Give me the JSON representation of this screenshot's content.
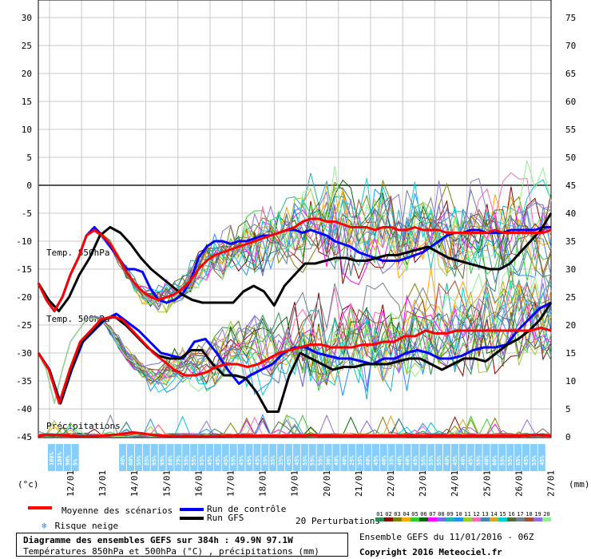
{
  "axes": {
    "left_unit": "(°c)",
    "right_unit": "(mm)",
    "left_ticks": [
      30,
      25,
      20,
      15,
      10,
      5,
      0,
      -5,
      -10,
      -15,
      -20,
      -25,
      -30,
      -35,
      -40,
      -45
    ],
    "right_ticks": [
      75,
      70,
      65,
      60,
      55,
      50,
      45,
      40,
      35,
      30,
      25,
      20,
      15,
      10,
      5,
      0
    ],
    "date_labels": [
      "12/01",
      "13/01",
      "14/01",
      "15/01",
      "16/01",
      "17/01",
      "18/01",
      "19/01",
      "20/01",
      "21/01",
      "22/01",
      "23/01",
      "24/01",
      "25/01",
      "26/01",
      "27/01"
    ]
  },
  "panel_labels": {
    "t850": "Temp. 850hPa",
    "t500": "Temp. 500hPa",
    "precip": "Précipitations"
  },
  "snow_risk_row": [
    "100%",
    "100%",
    "90%",
    "5%",
    "",
    "",
    "",
    "",
    "",
    "40%",
    "60%",
    "55%",
    "85%",
    "95%",
    "95%",
    "80%",
    "75%",
    "55%",
    "55%",
    "55%",
    "45%",
    "45%",
    "45%",
    "55%",
    "45%",
    "45%",
    "45%",
    "35%",
    "35%",
    "35%",
    "45%",
    "45%",
    "55%",
    "55%",
    "55%",
    "30%",
    "40%",
    "40%",
    "25%",
    "35%",
    "40%",
    "45%",
    "40%",
    "35%",
    "40%",
    "40%",
    "45%",
    "55%",
    "55%",
    "55%",
    "40%",
    "45%",
    "40%",
    "45%",
    "55%",
    "40%",
    "60%",
    "55%",
    "55%",
    "65%",
    "45%",
    "55%",
    "45%"
  ],
  "legend": {
    "mean_label": "Moyenne des scénarios",
    "control_label": "Run de contrôle",
    "gfs_label": "Run GFS",
    "snow_label": "Risque neige",
    "perturbations_label": "20 Perturbations",
    "ensemble_label": "Ensemble GEFS du 11/01/2016 - 06Z",
    "copyright": "Copyright 2016 Meteociel.fr",
    "mean_color": "#ff0000",
    "control_color": "#0000ff",
    "gfs_color": "#000000"
  },
  "perturbations": {
    "numbers": [
      "01",
      "02",
      "03",
      "04",
      "05",
      "06",
      "07",
      "08",
      "09",
      "10",
      "11",
      "12",
      "13",
      "14",
      "15",
      "16",
      "17",
      "18",
      "19",
      "20"
    ],
    "colors": [
      "#2e8b57",
      "#8b0000",
      "#808000",
      "#ffa500",
      "#32cd32",
      "#006400",
      "#ff00ff",
      "#7b68ee",
      "#20b2aa",
      "#1e90ff",
      "#9acd32",
      "#ff69b4",
      "#4682b4",
      "#daa520",
      "#00ced1",
      "#556b2f",
      "#708090",
      "#a0522d",
      "#9370db",
      "#90ee90"
    ]
  },
  "info": {
    "title": "Diagramme des ensembles GEFS sur 384h : 49.9N 97.1W",
    "subtitle": "Températures 850hPa et 500hPa (°C) , précipitations (mm)"
  },
  "chart_data": {
    "type": "line",
    "x_start": "11/01/2016 06Z",
    "x_unit_hours": 6,
    "ylim": [
      -45,
      30
    ],
    "y2lim": [
      0,
      75
    ],
    "series": [
      {
        "name": "Moyenne des scénarios",
        "level": "850hPa",
        "values": [
          -17.5,
          -20.5,
          -22.5,
          -20,
          -16,
          -13,
          -9,
          -8,
          -9,
          -10.5,
          -13,
          -15.5,
          -17.5,
          -19,
          -20,
          -20.5,
          -20,
          -19.5,
          -18.5,
          -17,
          -15,
          -13.5,
          -12.5,
          -12,
          -11.5,
          -11,
          -10.5,
          -10,
          -9.5,
          -9,
          -8.5,
          -8,
          -7.5,
          -6.5,
          -6,
          -6,
          -6.5,
          -6.5,
          -7,
          -7.5,
          -7.5,
          -7.5,
          -8,
          -7.5,
          -7.5,
          -8,
          -8,
          -7.5,
          -8,
          -8,
          -8,
          -8.5,
          -8.5,
          -8.5,
          -8.5,
          -8.5,
          -8.5,
          -8,
          -8.5,
          -8.5,
          -8.5,
          -8.5,
          -8.5,
          -8.5,
          -8
        ]
      },
      {
        "name": "Run de contrôle",
        "level": "850hPa",
        "values": [
          -17.5,
          -20.5,
          -22.5,
          -20,
          -16,
          -13,
          -9,
          -7.5,
          -9,
          -11,
          -13,
          -15,
          -15,
          -15.5,
          -18.5,
          -20.5,
          -21,
          -20.5,
          -19.5,
          -17,
          -13,
          -11,
          -10,
          -10,
          -10.5,
          -10,
          -10,
          -9.5,
          -9,
          -9,
          -8.5,
          -8,
          -8,
          -8.5,
          -8,
          -8.5,
          -9,
          -10,
          -10.5,
          -11,
          -12,
          -12.5,
          -13,
          -13.5,
          -13.5,
          -13.5,
          -13,
          -12.5,
          -12,
          -11,
          -10,
          -9,
          -8.5,
          -8.5,
          -8,
          -8,
          -8.5,
          -8.5,
          -8.5,
          -8,
          -8,
          -8,
          -8,
          -7.5,
          -7.5
        ]
      },
      {
        "name": "Run GFS",
        "level": "850hPa",
        "values": [
          -17.5,
          -20.5,
          -22.5,
          -20,
          -16,
          -13,
          -9,
          -7.5,
          -8.5,
          -10.5,
          -13,
          -15,
          -16.5,
          -18,
          -19.5,
          -20.5,
          -21,
          -21,
          -21,
          -21,
          -19,
          -18,
          -19,
          -21.5,
          -18,
          -16,
          -14,
          -14,
          -13.5,
          -13,
          -13,
          -13.5,
          -13.5,
          -13,
          -12.5,
          -12.5,
          -12,
          -11.5,
          -11,
          -12,
          -13,
          -13.5,
          -14,
          -14.5,
          -15,
          -15,
          -14,
          -12,
          -10,
          -8,
          -5
        ]
      },
      {
        "name": "Moyenne des scénarios",
        "level": "500hPa",
        "values": [
          -30,
          -33,
          -39,
          -33,
          -28,
          -26,
          -24,
          -23.5,
          -24,
          -26,
          -28,
          -30,
          -31.5,
          -33,
          -34,
          -34,
          -33.5,
          -32.5,
          -32,
          -32,
          -32.5,
          -32,
          -31,
          -30,
          -29.5,
          -29,
          -28.5,
          -28.5,
          -29,
          -29,
          -29,
          -28.5,
          -28.5,
          -28,
          -28,
          -27,
          -27,
          -26,
          -26.5,
          -26.5,
          -26,
          -26,
          -26,
          -26,
          -26,
          -26,
          -26,
          -26,
          -25.5,
          -26
        ]
      },
      {
        "name": "Run de contrôle",
        "level": "500hPa",
        "values": [
          -30,
          -33,
          -39,
          -33,
          -28,
          -26,
          -24,
          -23,
          -24.5,
          -26,
          -28,
          -30,
          -30.5,
          -31,
          -28,
          -27.5,
          -30,
          -33,
          -35.5,
          -34,
          -33,
          -32,
          -30,
          -29,
          -29,
          -30,
          -30.5,
          -31,
          -31,
          -31.5,
          -32,
          -31,
          -31,
          -30,
          -29.5,
          -30,
          -31,
          -31,
          -30.5,
          -29.5,
          -29,
          -29,
          -28.5,
          -26,
          -24,
          -22,
          -21
        ]
      },
      {
        "name": "Run GFS",
        "level": "500hPa",
        "values": [
          -30,
          -33,
          -39,
          -33,
          -28,
          -26,
          -24,
          -23.5,
          -25,
          -27,
          -29,
          -30.5,
          -31,
          -31,
          -29.5,
          -29.5,
          -32,
          -34,
          -34,
          -34.5,
          -37,
          -40.5,
          -40.5,
          -34,
          -30,
          -31,
          -32,
          -33,
          -32.5,
          -32.5,
          -32,
          -32,
          -32,
          -31.5,
          -31,
          -31,
          -32,
          -33,
          -32,
          -31,
          -31,
          -31.5,
          -30,
          -28.5,
          -27.5,
          -26,
          -24,
          -21
        ]
      },
      {
        "name": "Moyenne des scénarios",
        "level": "precipitation_mm",
        "values": [
          0.2,
          0.4,
          0.3,
          0.2,
          0.1,
          0.1,
          0.2,
          0.3,
          0.5,
          0.8,
          0.6,
          0.3,
          0.2,
          0.1,
          0.1,
          0.1,
          0.1,
          0.1,
          0.2,
          0.2,
          0.2,
          0.2,
          0.2,
          0.2,
          0.2,
          0.2,
          0.3,
          0.2,
          0.2,
          0.2,
          0.2,
          0.2,
          0.2,
          0.2,
          0.2,
          0.2,
          0.2,
          0.2,
          0.2,
          0.2,
          0.2,
          0.2,
          0.2,
          0.2,
          0.2,
          0.2,
          0.2,
          0.3,
          0.3,
          0.2
        ]
      }
    ]
  }
}
